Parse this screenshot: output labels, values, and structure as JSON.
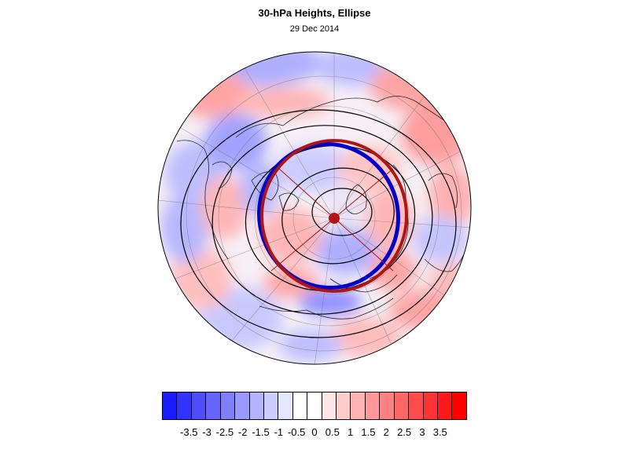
{
  "title": "30-hPa Heights, Ellipse",
  "subtitle": "29 Dec 2014",
  "colorbar": {
    "colors": [
      "#1a1aff",
      "#3333ff",
      "#4d4dff",
      "#6666ff",
      "#8080ff",
      "#9999ff",
      "#b3b3ff",
      "#ccccff",
      "#e6e6ff",
      "#ffffff",
      "#ffffff",
      "#ffe6e6",
      "#ffcccc",
      "#ffb3b3",
      "#ff9999",
      "#ff8080",
      "#ff6666",
      "#ff4d4d",
      "#ff3333",
      "#ff1a1a",
      "#ff0000"
    ],
    "tick_labels": [
      "-3.5",
      "-3",
      "-2.5",
      "-2",
      "-1.5",
      "-1",
      "-0.5",
      "0",
      "0.5",
      "1",
      "1.5",
      "2",
      "2.5",
      "3",
      "3.5"
    ],
    "tick_values": [
      -3.5,
      -3,
      -2.5,
      -2,
      -1.5,
      -1,
      -0.5,
      0,
      0.5,
      1,
      1.5,
      2,
      2.5,
      3,
      3.5
    ],
    "range": [
      -4.25,
      4.25
    ]
  },
  "map": {
    "projection": "north-polar-orthographic",
    "shading": "30-hPa height anomaly (red positive, blue negative)",
    "ellipse_color": "#b01515",
    "vortex_edge_color": "#0000cc",
    "contour_color": "#000000"
  }
}
